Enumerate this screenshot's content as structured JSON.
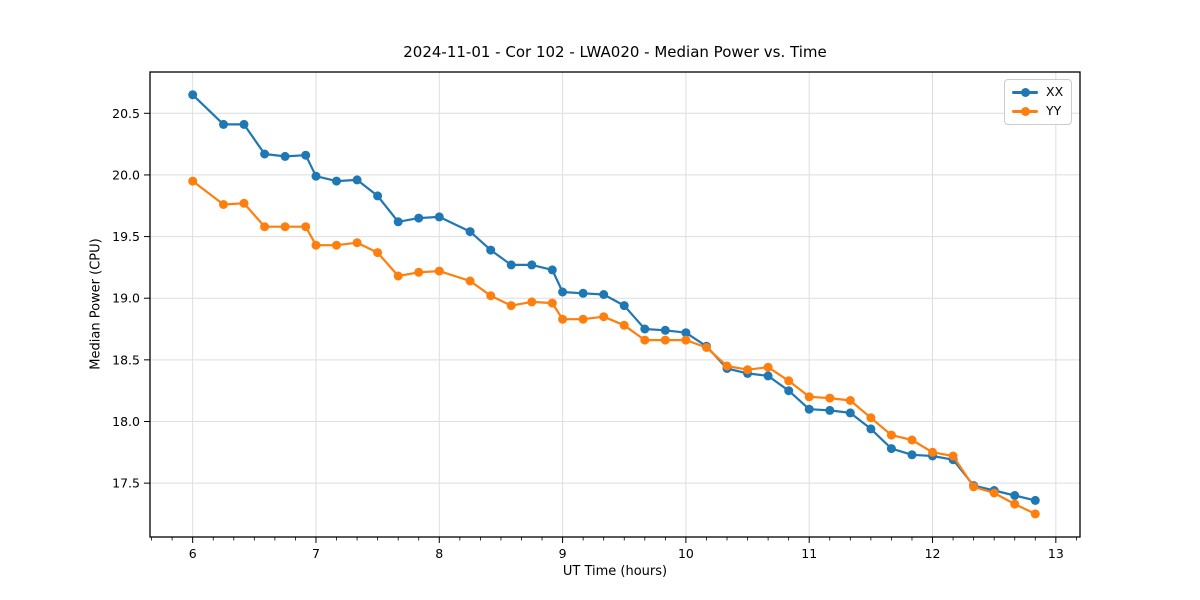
{
  "chart_data": {
    "type": "line",
    "title": "2024-11-01 - Cor 102 - LWA020 - Median Power vs. Time",
    "xlabel": "UT Time (hours)",
    "ylabel": "Median Power (CPU)",
    "xlim": [
      5.654,
      13.196
    ],
    "ylim": [
      17.063,
      20.835
    ],
    "x_major_ticks": [
      6,
      7,
      8,
      9,
      10,
      11,
      12,
      13
    ],
    "x_tick_labels": [
      "6",
      "7",
      "8",
      "9",
      "10",
      "11",
      "12",
      "13"
    ],
    "x_minor_step_hours": 0.166667,
    "y_ticks": [
      17.5,
      18.0,
      18.5,
      19.0,
      19.5,
      20.0,
      20.5
    ],
    "y_tick_labels": [
      "17.5",
      "18.0",
      "18.5",
      "19.0",
      "19.5",
      "20.0",
      "20.5"
    ],
    "grid": "major-both",
    "grid_color": "#dedede",
    "spine_color": "#000000",
    "legend_position": "upper-right",
    "x": [
      6.0,
      6.25,
      6.4167,
      6.5833,
      6.75,
      6.9167,
      7.0,
      7.1667,
      7.3333,
      7.5,
      7.6667,
      7.8333,
      8.0,
      8.25,
      8.4167,
      8.5833,
      8.75,
      8.9167,
      9.0,
      9.1667,
      9.3333,
      9.5,
      9.6667,
      9.8333,
      10.0,
      10.1667,
      10.3333,
      10.5,
      10.6667,
      10.8333,
      11.0,
      11.1667,
      11.3333,
      11.5,
      11.6667,
      11.8333,
      12.0,
      12.1667,
      12.3333,
      12.5,
      12.6667,
      12.8333
    ],
    "series": [
      {
        "name": "XX",
        "color": "#1f77b4",
        "values": [
          20.65,
          20.41,
          20.41,
          20.17,
          20.15,
          20.16,
          19.99,
          19.95,
          19.96,
          19.83,
          19.62,
          19.65,
          19.66,
          19.54,
          19.39,
          19.27,
          19.27,
          19.23,
          19.05,
          19.04,
          19.03,
          18.94,
          18.75,
          18.74,
          18.72,
          18.61,
          18.43,
          18.39,
          18.37,
          18.25,
          18.1,
          18.09,
          18.07,
          17.94,
          17.78,
          17.73,
          17.72,
          17.69,
          17.48,
          17.44,
          17.4,
          17.36
        ]
      },
      {
        "name": "YY",
        "color": "#ff7f0e",
        "values": [
          19.95,
          19.76,
          19.77,
          19.58,
          19.58,
          19.58,
          19.43,
          19.43,
          19.45,
          19.37,
          19.18,
          19.21,
          19.22,
          19.14,
          19.02,
          18.94,
          18.97,
          18.96,
          18.83,
          18.83,
          18.85,
          18.78,
          18.66,
          18.66,
          18.66,
          18.6,
          18.45,
          18.42,
          18.44,
          18.33,
          18.2,
          18.19,
          18.17,
          18.03,
          17.89,
          17.85,
          17.75,
          17.72,
          17.47,
          17.42,
          17.33,
          17.25
        ]
      }
    ]
  }
}
